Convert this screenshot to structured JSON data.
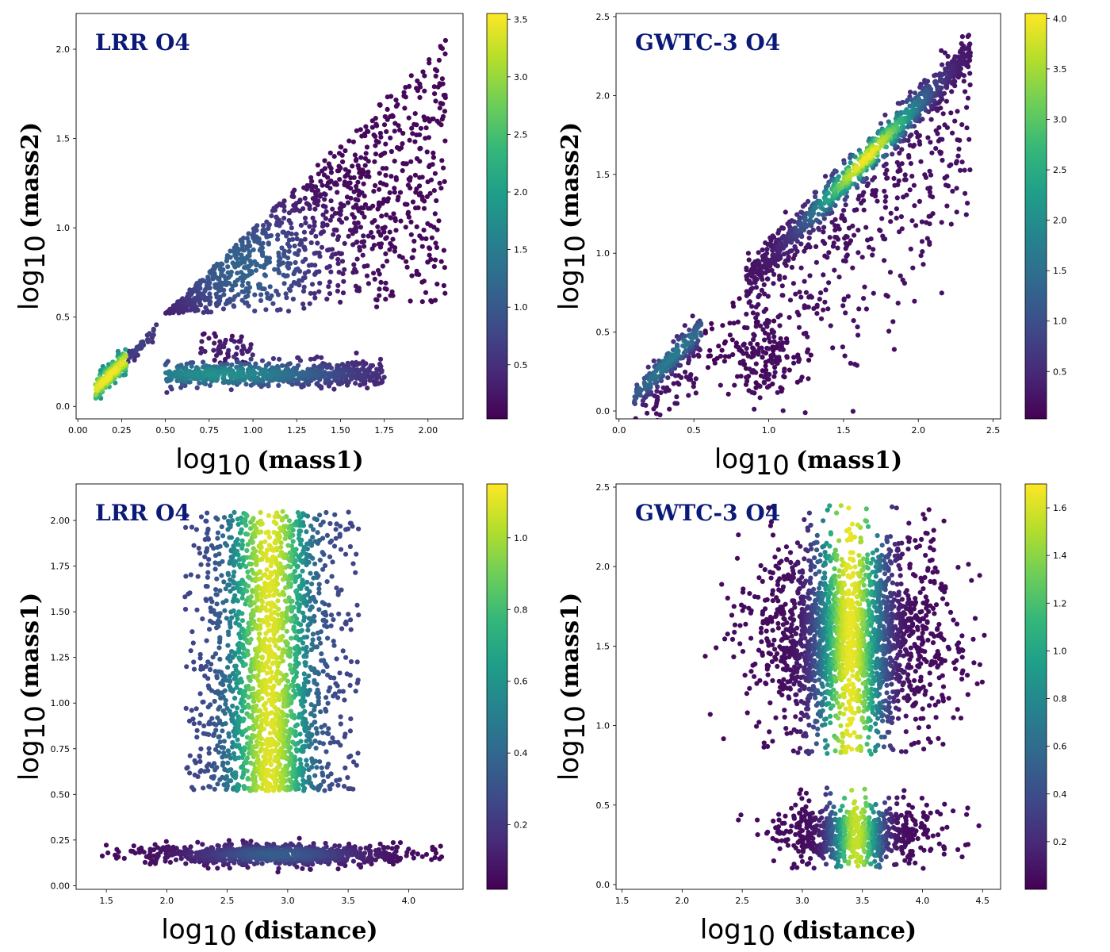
{
  "colors": {
    "viridis": [
      "#440154",
      "#482878",
      "#3e4a89",
      "#31688e",
      "#26828e",
      "#1f9e89",
      "#35b779",
      "#6ece58",
      "#b5de2b",
      "#fde725"
    ],
    "title": "#0b1a78"
  },
  "chart_data": [
    {
      "id": "p1",
      "type": "scatter",
      "title": "LRR O4",
      "xlabel_prefix": "log",
      "xlabel_sub": "10",
      "xlabel_var": "(mass1)",
      "ylabel_prefix": "log",
      "ylabel_sub": "10",
      "ylabel_var": "(mass2)",
      "xlim": [
        -0.01,
        2.2
      ],
      "ylim": [
        -0.07,
        2.2
      ],
      "xticks": [
        0.0,
        0.25,
        0.5,
        0.75,
        1.0,
        1.25,
        1.5,
        1.75,
        2.0
      ],
      "xtick_labels": [
        "0.00",
        "0.25",
        "0.50",
        "0.75",
        "1.00",
        "1.25",
        "1.50",
        "1.75",
        "2.00"
      ],
      "yticks": [
        0.0,
        0.5,
        1.0,
        1.5,
        2.0
      ],
      "ytick_labels": [
        "0.0",
        "0.5",
        "1.0",
        "1.5",
        "2.0"
      ],
      "color_range": [
        0.03,
        3.55
      ],
      "cbar_ticks": [
        0.5,
        1.0,
        1.5,
        2.0,
        2.5,
        3.0,
        3.5
      ],
      "cbar_tick_labels": [
        "0.5",
        "1.0",
        "1.5",
        "2.0",
        "2.5",
        "3.0",
        "3.5"
      ],
      "clusters": [
        {
          "kind": "tri",
          "n": 1100,
          "x": [
            0.5,
            2.1
          ],
          "low": [
            0.52,
            0.55
          ],
          "high": [
            0.52,
            2.05
          ],
          "c_peak": 1.15,
          "c_edge": 0.1,
          "pow": 0.9,
          "cx": 0.95,
          "cy": 0.78
        },
        {
          "kind": "band",
          "n": 650,
          "x": [
            0.5,
            1.75
          ],
          "yc": 0.18,
          "ys": 0.05,
          "c_peak": 1.8,
          "c_edge": 0.3,
          "cx": 0.8
        },
        {
          "kind": "band",
          "n": 55,
          "x": [
            0.7,
            1.0
          ],
          "yc": 0.33,
          "ys": 0.06,
          "c_peak": 0.35,
          "c_edge": 0.05,
          "cx": 0.85
        },
        {
          "kind": "diag",
          "n": 180,
          "x": [
            0.1,
            0.28
          ],
          "slope": 0.95,
          "off": 0.0,
          "w": 0.035,
          "c_peak": 3.5,
          "c_edge": 1.5,
          "cx": 0.18
        },
        {
          "kind": "diag",
          "n": 40,
          "x": [
            0.28,
            0.45
          ],
          "slope": 0.95,
          "off": 0.0,
          "w": 0.02,
          "c_peak": 0.7,
          "c_edge": 0.4,
          "cx": 0.36
        }
      ]
    },
    {
      "id": "p2",
      "type": "scatter",
      "title": "GWTC-3 O4",
      "xlabel_prefix": "log",
      "xlabel_sub": "10",
      "xlabel_var": "(mass1)",
      "ylabel_prefix": "log",
      "ylabel_sub": "10",
      "ylabel_var": "(mass2)",
      "xlim": [
        -0.02,
        2.55
      ],
      "ylim": [
        -0.05,
        2.52
      ],
      "xticks": [
        0.0,
        0.5,
        1.0,
        1.5,
        2.0,
        2.5
      ],
      "xtick_labels": [
        "0.0",
        "0.5",
        "1.0",
        "1.5",
        "2.0",
        "2.5"
      ],
      "yticks": [
        0.0,
        0.5,
        1.0,
        1.5,
        2.0,
        2.5
      ],
      "ytick_labels": [
        "0.0",
        "0.5",
        "1.0",
        "1.5",
        "2.0",
        "2.5"
      ],
      "color_range": [
        0.03,
        4.05
      ],
      "cbar_ticks": [
        0.5,
        1.0,
        1.5,
        2.0,
        2.5,
        3.0,
        3.5,
        4.0
      ],
      "cbar_tick_labels": [
        "0.5",
        "1.0",
        "1.5",
        "2.0",
        "2.5",
        "3.0",
        "3.5",
        "4.0"
      ],
      "clusters": [
        {
          "kind": "diag",
          "n": 1300,
          "x": [
            0.85,
            2.35
          ],
          "slope": 0.97,
          "off": 0.0,
          "w": 0.06,
          "tail": 0.55,
          "c_peak": 4.0,
          "c_edge": 0.2,
          "cx": 1.65
        },
        {
          "kind": "diag",
          "n": 280,
          "x": [
            0.1,
            0.55
          ],
          "slope": 0.95,
          "off": 0.0,
          "w": 0.05,
          "tail": 0.2,
          "c_peak": 1.7,
          "c_edge": 0.2,
          "cx": 0.35
        },
        {
          "kind": "blob",
          "n": 140,
          "xc": 1.0,
          "xs": 0.12,
          "yc": 0.32,
          "ys": 0.12,
          "c_peak": 0.2,
          "c_edge": 0.05
        },
        {
          "kind": "blob",
          "n": 30,
          "xc": 0.65,
          "xs": 0.1,
          "yc": 0.42,
          "ys": 0.12,
          "c_peak": 0.1,
          "c_edge": 0.05
        }
      ]
    },
    {
      "id": "p3",
      "type": "scatter",
      "title": "LRR O4",
      "xlabel_prefix": "log",
      "xlabel_sub": "10",
      "xlabel_var": "(distance)",
      "ylabel_prefix": "log",
      "ylabel_sub": "10",
      "ylabel_var": "(mass1)",
      "xlim": [
        1.25,
        4.45
      ],
      "ylim": [
        -0.02,
        2.2
      ],
      "xticks": [
        1.5,
        2.0,
        2.5,
        3.0,
        3.5,
        4.0
      ],
      "xtick_labels": [
        "1.5",
        "2.0",
        "2.5",
        "3.0",
        "3.5",
        "4.0"
      ],
      "yticks": [
        0.0,
        0.25,
        0.5,
        0.75,
        1.0,
        1.25,
        1.5,
        1.75,
        2.0
      ],
      "ytick_labels": [
        "0.00",
        "0.25",
        "0.50",
        "0.75",
        "1.00",
        "1.25",
        "1.50",
        "1.75",
        "2.00"
      ],
      "color_range": [
        0.02,
        1.15
      ],
      "cbar_ticks": [
        0.2,
        0.4,
        0.6,
        0.8,
        1.0
      ],
      "cbar_tick_labels": [
        "0.2",
        "0.4",
        "0.6",
        "0.8",
        "1.0"
      ],
      "clusters": [
        {
          "kind": "rect",
          "n": 2000,
          "x": [
            2.15,
            3.6
          ],
          "y": [
            0.52,
            2.05
          ],
          "xc": 2.85,
          "xs": 0.3,
          "c_peak": 1.1,
          "c_edge": 0.25
        },
        {
          "kind": "band",
          "n": 850,
          "x": [
            1.4,
            4.3
          ],
          "yc": 0.17,
          "ys": 0.04,
          "gauss_x": true,
          "xc": 2.9,
          "xs": 0.55,
          "c_peak": 0.35,
          "c_edge": 0.05
        }
      ]
    },
    {
      "id": "p4",
      "type": "scatter",
      "title": "GWTC-3 O4",
      "xlabel_prefix": "log",
      "xlabel_sub": "10",
      "xlabel_var": "(distance)",
      "ylabel_prefix": "log",
      "ylabel_sub": "10",
      "ylabel_var": "(mass1)",
      "xlim": [
        1.45,
        4.65
      ],
      "ylim": [
        -0.03,
        2.52
      ],
      "xticks": [
        1.5,
        2.0,
        2.5,
        3.0,
        3.5,
        4.0,
        4.5
      ],
      "xtick_labels": [
        "1.5",
        "2.0",
        "2.5",
        "3.0",
        "3.5",
        "4.0",
        "4.5"
      ],
      "yticks": [
        0.0,
        0.5,
        1.0,
        1.5,
        2.0,
        2.5
      ],
      "ytick_labels": [
        "0.0",
        "0.5",
        "1.0",
        "1.5",
        "2.0",
        "2.5"
      ],
      "color_range": [
        0.0,
        1.7
      ],
      "cbar_ticks": [
        0.2,
        0.4,
        0.6,
        0.8,
        1.0,
        1.2,
        1.4,
        1.6
      ],
      "cbar_tick_labels": [
        "0.2",
        "0.4",
        "0.6",
        "0.8",
        "1.0",
        "1.2",
        "1.4",
        "1.6"
      ],
      "clusters": [
        {
          "kind": "ellipse",
          "n": 2300,
          "xc": 3.4,
          "xs": 0.38,
          "yc": 1.55,
          "ys": 0.32,
          "ymin": 0.82,
          "ymax": 2.4,
          "c_peak": 1.65,
          "c_edge": 0.05,
          "cxs": 0.17
        },
        {
          "kind": "ellipse",
          "n": 750,
          "xc": 3.45,
          "xs": 0.32,
          "yc": 0.32,
          "ys": 0.1,
          "ymin": 0.1,
          "ymax": 0.62,
          "c_peak": 1.55,
          "c_edge": 0.05,
          "cxs": 0.13
        }
      ]
    }
  ]
}
